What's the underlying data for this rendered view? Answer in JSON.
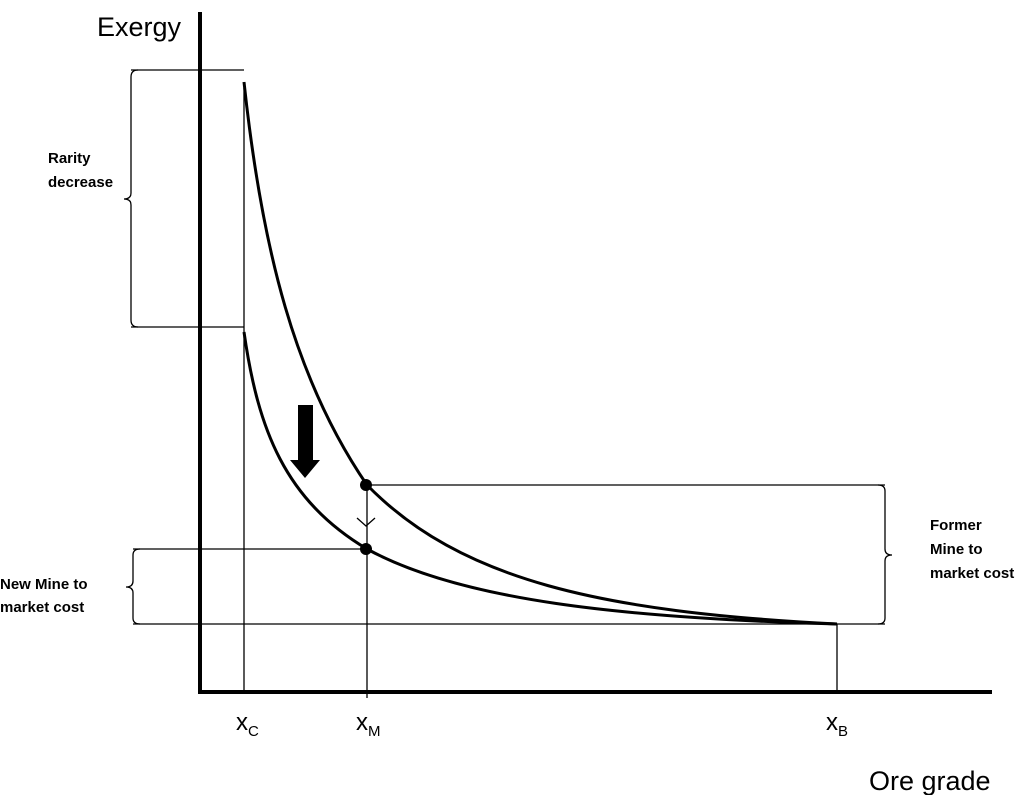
{
  "axes": {
    "y_title": "Exergy",
    "x_title": "Ore grade"
  },
  "ticks": [
    {
      "main": "x",
      "sub": "C"
    },
    {
      "main": "x",
      "sub": "M"
    },
    {
      "main": "x",
      "sub": "B"
    }
  ],
  "labels": {
    "rarity": [
      "Rarity",
      "decrease"
    ],
    "new_mine": [
      "New Mine  to",
      "market cost"
    ],
    "former_mine": [
      "Former",
      "Mine to",
      "market cost"
    ]
  }
}
